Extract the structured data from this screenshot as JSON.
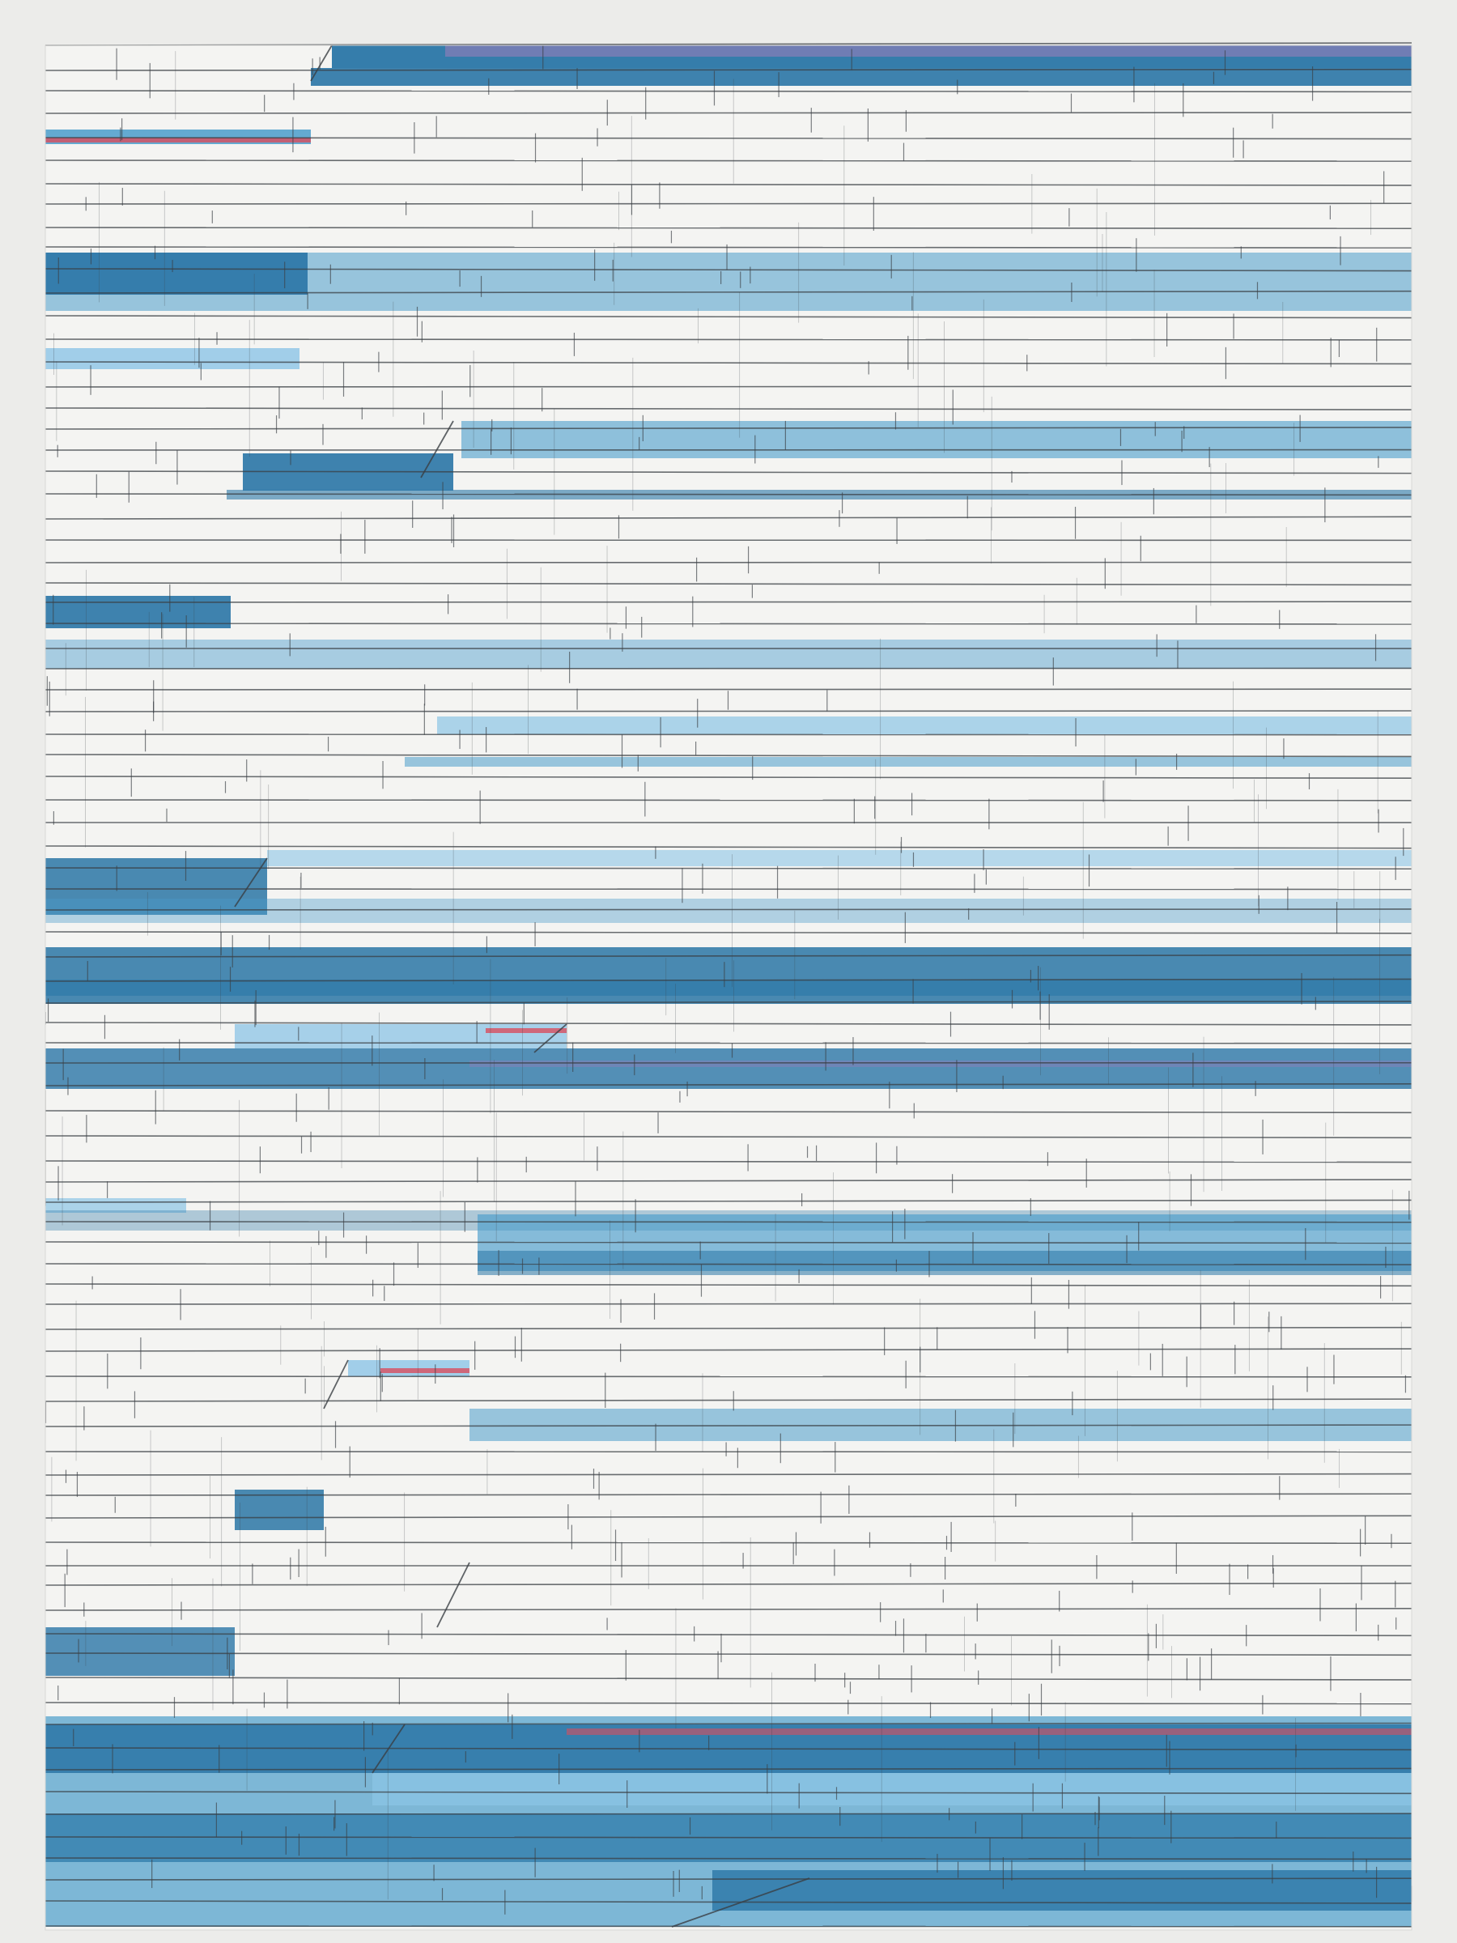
{
  "artwork": {
    "palette": {
      "background": "#ececea",
      "paper": "#f4f4f2",
      "line": "#3a3f44",
      "dark_blue": "#2a76a6",
      "mid_blue": "#4a9ccb",
      "light_blue": "#8cc4e6",
      "accent_red": "#d94d5e",
      "accent_violet": "#8a7db8"
    }
  }
}
